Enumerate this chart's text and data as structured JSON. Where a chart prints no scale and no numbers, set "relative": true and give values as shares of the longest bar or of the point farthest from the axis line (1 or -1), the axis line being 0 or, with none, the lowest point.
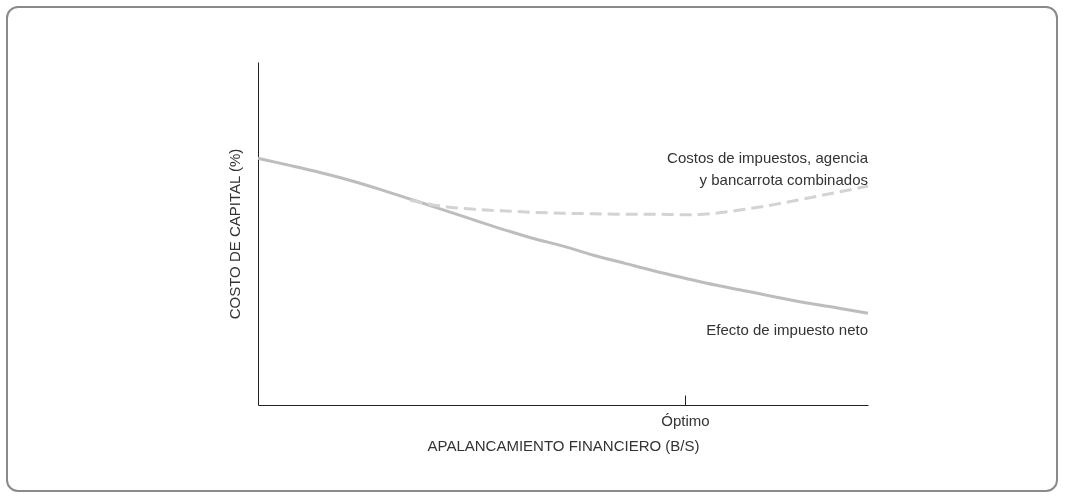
{
  "chart_data": {
    "type": "line",
    "relative": true,
    "xlabel": "APALANCAMIENTO FINANCIERO (B/S)",
    "ylabel": "COSTO DE CAPITAL (%)",
    "categories": [
      null,
      null,
      null,
      null,
      null,
      null,
      null,
      null,
      null,
      null,
      null,
      null,
      null,
      null,
      null,
      null,
      null,
      null,
      null,
      null,
      null
    ],
    "annotations": [
      "Óptimo"
    ],
    "grid": false,
    "marker": "none",
    "series": [
      {
        "name": "Efecto de impuesto neto",
        "color": "#bdbdbd",
        "line_style": "solid",
        "values": [
          1.0,
          0.972,
          0.943,
          0.911,
          0.874,
          0.834,
          0.794,
          0.753,
          0.713,
          0.676,
          0.644,
          0.607,
          0.575,
          0.543,
          0.514,
          0.486,
          0.462,
          0.437,
          0.413,
          0.393,
          0.372
        ]
      },
      {
        "name": "Costos de impuestos, agencia y bancarrota combinados",
        "color": "#d3d3d3",
        "line_style": "dashed",
        "values": [
          null,
          null,
          null,
          null,
          null,
          0.83,
          0.806,
          0.794,
          0.787,
          0.781,
          0.777,
          0.775,
          0.773,
          0.773,
          0.771,
          0.777,
          0.794,
          0.814,
          0.838,
          0.862,
          0.887
        ]
      }
    ]
  }
}
